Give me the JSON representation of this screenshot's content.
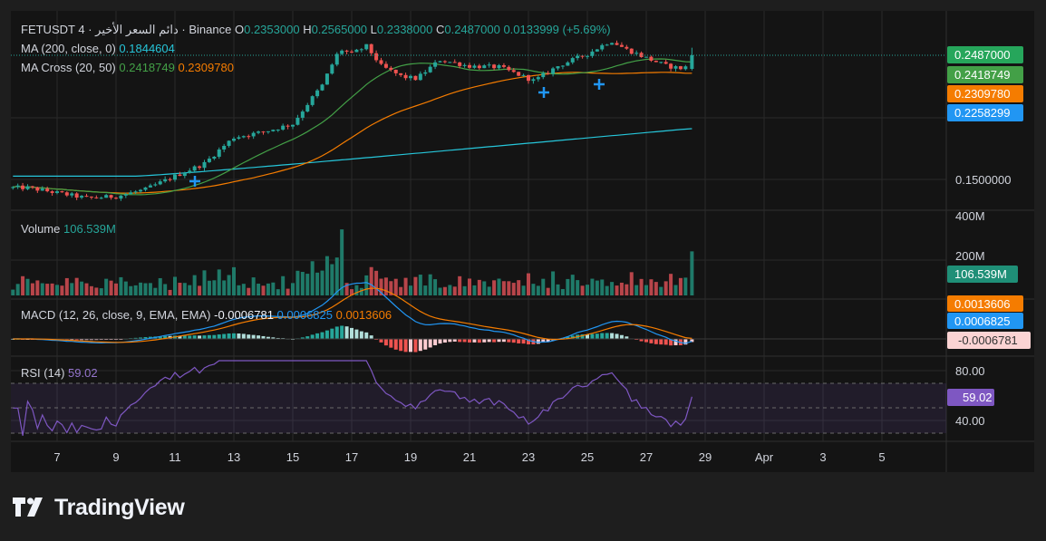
{
  "header": {
    "symbol": "FETUSDT",
    "interval": "4",
    "source_name": "دائم السعر الأخير",
    "exchange": "Binance",
    "ohlc": {
      "open_label": "O",
      "open": "0.2353000",
      "high_label": "H",
      "high": "0.2565000",
      "low_label": "L",
      "low": "0.2338000",
      "close_label": "C",
      "close": "0.2487000",
      "change": "0.0133999 (+5.69%)"
    },
    "ma200": {
      "label": "MA (200, close, 0)",
      "value": "0.1844604"
    },
    "macross": {
      "label": "MA Cross (20, 50)",
      "fast": "0.2418749",
      "slow": "0.2309780"
    }
  },
  "price_axis": {
    "ticks": [
      "0.1500000"
    ],
    "badges": [
      {
        "value": "0.2487000",
        "color": "#26a65b",
        "text_color": "#ffffff"
      },
      {
        "value": "0.2418749",
        "color": "#43a047",
        "text_color": "#ffffff"
      },
      {
        "value": "0.2309780",
        "color": "#f57c00",
        "text_color": "#ffffff"
      },
      {
        "value": "0.2258299",
        "color": "#2196f3",
        "text_color": "#ffffff"
      }
    ]
  },
  "volume": {
    "label": "Volume",
    "value": "106.539M",
    "ticks": [
      "400M",
      "200M"
    ],
    "badge": {
      "value": "106.539M",
      "color": "#1f8f77"
    }
  },
  "macd": {
    "label": "MACD (12, 26, close, 9, EMA, EMA)",
    "hist": "-0.0006781",
    "macd": "0.0006825",
    "signal": "0.0013606",
    "badges": [
      {
        "value": "0.0013606",
        "color": "#f57c00",
        "text_color": "#ffffff"
      },
      {
        "value": "0.0006825",
        "color": "#2196f3",
        "text_color": "#ffffff"
      },
      {
        "value": "-0.0006781",
        "color": "#fbd3d3",
        "text_color": "#333333"
      }
    ]
  },
  "rsi": {
    "label": "RSI (14)",
    "value": "59.02",
    "ticks": [
      "80.00",
      "40.00"
    ],
    "badge": {
      "value": "59.02",
      "color": "#7e57c2"
    }
  },
  "time_axis": {
    "labels": [
      "7",
      "9",
      "11",
      "13",
      "15",
      "17",
      "19",
      "21",
      "23",
      "25",
      "27",
      "29",
      "Apr",
      "3",
      "5"
    ]
  },
  "brand": {
    "name": "TradingView",
    "logo_icon": "tradingview-logo-icon"
  },
  "colors": {
    "background": "#1e1e1e",
    "pane": "#141414",
    "grid": "#2a2a2a",
    "up": "#26a69a",
    "down": "#ef5350",
    "ma200": "#26c6da",
    "ma_fast": "#43a047",
    "ma_slow": "#f57c00",
    "macd_line": "#2196f3",
    "signal_line": "#f57c00",
    "rsi_line": "#7e57c2"
  },
  "chart_data": {
    "type": "candlestick",
    "symbol": "FETUSDT",
    "price_axis_labels": [
      "0.1500000"
    ],
    "x_labels": [
      "7",
      "9",
      "11",
      "13",
      "15",
      "17",
      "19",
      "21",
      "23",
      "25",
      "27",
      "29",
      "Apr",
      "3",
      "5"
    ],
    "last_candle": {
      "open": 0.2353,
      "high": 0.2565,
      "low": 0.2338,
      "close": 0.2487
    },
    "close_anchors_by_day": [
      [
        6.0,
        0.145
      ],
      [
        7.0,
        0.142
      ],
      [
        8.0,
        0.139
      ],
      [
        9.0,
        0.14
      ],
      [
        10.0,
        0.144
      ],
      [
        11.0,
        0.152
      ],
      [
        12.0,
        0.16
      ],
      [
        13.0,
        0.178
      ],
      [
        14.0,
        0.182
      ],
      [
        15.0,
        0.188
      ],
      [
        16.0,
        0.22
      ],
      [
        16.6,
        0.255
      ],
      [
        17.0,
        0.25
      ],
      [
        17.5,
        0.258
      ],
      [
        18.0,
        0.238
      ],
      [
        18.7,
        0.228
      ],
      [
        19.2,
        0.226
      ],
      [
        20.0,
        0.244
      ],
      [
        21.0,
        0.238
      ],
      [
        22.0,
        0.237
      ],
      [
        23.2,
        0.224
      ],
      [
        24.0,
        0.238
      ],
      [
        25.0,
        0.25
      ],
      [
        25.8,
        0.264
      ],
      [
        26.3,
        0.255
      ],
      [
        27.0,
        0.246
      ],
      [
        27.7,
        0.238
      ],
      [
        28.3,
        0.2353
      ],
      [
        28.55,
        0.2487
      ]
    ],
    "ma200_end": 0.1844604,
    "ma_fast_end": 0.2418749,
    "ma_slow_end": 0.230978,
    "volume_last_M": 106.539,
    "macd_last": 0.0006825,
    "signal_last": 0.0013606,
    "histogram_last": -0.0006781,
    "rsi_last": 59.02,
    "rsi_bands": [
      30,
      70
    ],
    "rsi_axis_labels": [
      80,
      40
    ]
  }
}
